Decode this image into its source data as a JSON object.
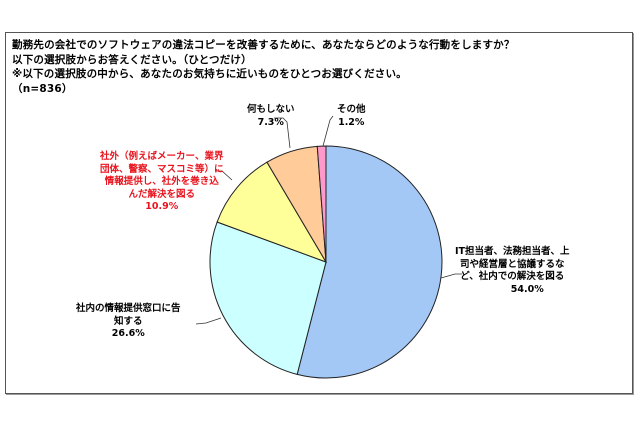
{
  "question": {
    "line1": "勤務先の会社でのソフトウェアの違法コピーを改善するために、あなたならどのような行動をしますか？",
    "line2": "以下の選択肢からお答えください。（ひとつだけ）",
    "line3": "※以下の選択肢の中から、あなたのお気持ちに近いものをひとつお選びください。",
    "line4": "（n=836）"
  },
  "labels": {
    "s1_l1": "IT担当者、法務担当者、上",
    "s1_l2": "司や経営層と協議するな",
    "s1_l3": "ど、社内での解決を図る",
    "s1_pct": "54.0%",
    "s2_l1": "社内の情報提供窓口に告",
    "s2_l2": "知する",
    "s2_pct": "26.6%",
    "s3_l1": "社外（例えばメーカー、業界",
    "s3_l2": "団体、警察、マスコミ等）に",
    "s3_l3": "情報提供し、社外を巻き込",
    "s3_l4": "んだ解決を図る",
    "s3_pct": "10.9%",
    "s4_l1": "何もしない",
    "s4_pct": "7.3%",
    "s5_l1": "その他",
    "s5_pct": "1.2%"
  },
  "chart_data": {
    "type": "pie",
    "title": "勤務先の会社でのソフトウェアの違法コピーを改善するために、あなたならどのような行動をしますか？",
    "subtitle": "以下の選択肢からお答えください。（ひとつだけ） ※以下の選択肢の中から、あなたのお気持ちに近いものをひとつお選びください。（n=836）",
    "n": 836,
    "start_angle": "12 o'clock",
    "direction": "clockwise",
    "categories": [
      "IT担当者、法務担当者、上司や経営層と協議するなど、社内での解決を図る",
      "社内の情報提供窓口に告知する",
      "社外（例えばメーカー、業界団体、警察、マスコミ等）に情報提供し、社外を巻き込んだ解決を図る",
      "何もしない",
      "その他"
    ],
    "values": [
      54.0,
      26.6,
      10.9,
      7.3,
      1.2
    ],
    "unit": "%",
    "colors": [
      "#A3C8F5",
      "#CCFFFF",
      "#FFFF99",
      "#FFCC99",
      "#FF99CC"
    ],
    "highlighted_label_color": "#E8141E",
    "highlighted_index": 2
  }
}
